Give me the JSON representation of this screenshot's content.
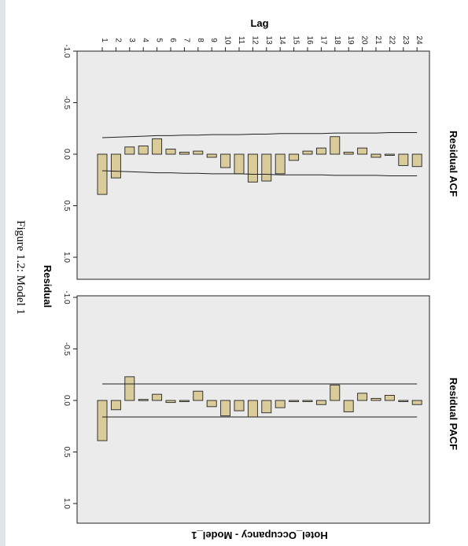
{
  "figure_caption": "Figure 1.2:  Model 1",
  "chart_data": [
    {
      "type": "bar",
      "panel_title": "Residual ACF",
      "top_label": "Lag",
      "side_label": "Residual",
      "bottom_label": "Hotel_Occupancy - Model_1",
      "categories": [
        "1",
        "2",
        "3",
        "4",
        "5",
        "6",
        "7",
        "8",
        "9",
        "10",
        "11",
        "12",
        "13",
        "14",
        "15",
        "16",
        "17",
        "18",
        "19",
        "20",
        "21",
        "22",
        "23",
        "24"
      ],
      "values": [
        0.39,
        0.23,
        -0.07,
        -0.08,
        -0.15,
        -0.05,
        -0.02,
        -0.03,
        0.03,
        0.13,
        0.19,
        0.27,
        0.26,
        0.19,
        0.06,
        -0.03,
        -0.06,
        -0.17,
        -0.02,
        -0.06,
        0.03,
        0.0,
        0.11,
        0.12
      ],
      "confidence_upper": [
        -0.16,
        -0.165,
        -0.17,
        -0.175,
        -0.18,
        -0.18,
        -0.185,
        -0.185,
        -0.19,
        -0.19,
        -0.19,
        -0.195,
        -0.195,
        -0.2,
        -0.2,
        -0.2,
        -0.2,
        -0.205,
        -0.205,
        -0.205,
        -0.205,
        -0.21,
        -0.21,
        -0.21
      ],
      "confidence_lower": [
        0.16,
        0.165,
        0.17,
        0.175,
        0.18,
        0.18,
        0.185,
        0.185,
        0.19,
        0.19,
        0.19,
        0.195,
        0.195,
        0.2,
        0.2,
        0.2,
        0.2,
        0.205,
        0.205,
        0.205,
        0.205,
        0.21,
        0.21,
        0.21
      ],
      "ticks": [
        "-1.0",
        "-0.5",
        "0.0",
        "0.5",
        "1.0"
      ],
      "ylim": [
        -1,
        1.2
      ],
      "bar_color": "#d9cc9a",
      "panel_bg": "#ebebeb"
    },
    {
      "type": "bar",
      "panel_title": "Residual PACF",
      "categories": [
        "1",
        "2",
        "3",
        "4",
        "5",
        "6",
        "7",
        "8",
        "9",
        "10",
        "11",
        "12",
        "13",
        "14",
        "15",
        "16",
        "17",
        "18",
        "19",
        "20",
        "21",
        "22",
        "23",
        "24"
      ],
      "values": [
        0.39,
        0.09,
        -0.23,
        -0.01,
        -0.06,
        0.02,
        0.01,
        -0.09,
        0.06,
        0.15,
        0.1,
        0.16,
        0.12,
        0.07,
        0.0,
        0.0,
        0.04,
        -0.15,
        0.11,
        -0.07,
        -0.02,
        -0.05,
        0.0,
        0.04
      ],
      "confidence_upper": -0.16,
      "confidence_lower": 0.16,
      "ticks": [
        "-1.0",
        "-0.5",
        "0.0",
        "0.5",
        "1.0"
      ],
      "ylim": [
        -1,
        1.2
      ],
      "bar_color": "#d9cc9a",
      "panel_bg": "#ebebeb"
    }
  ]
}
